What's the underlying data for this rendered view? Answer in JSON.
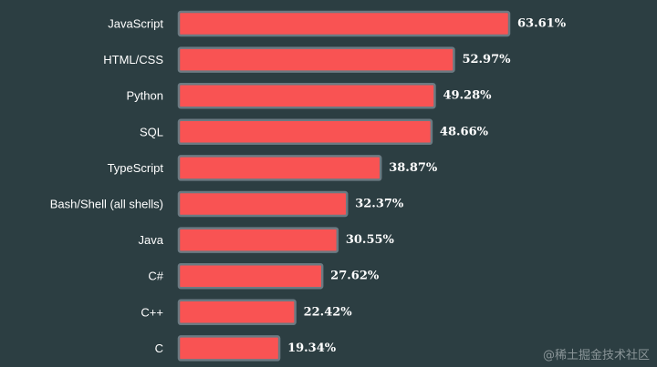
{
  "chart_data": {
    "type": "bar",
    "orientation": "horizontal",
    "categories": [
      "JavaScript",
      "HTML/CSS",
      "Python",
      "SQL",
      "TypeScript",
      "Bash/Shell (all shells)",
      "Java",
      "C#",
      "C++",
      "C"
    ],
    "values": [
      63.61,
      52.97,
      49.28,
      48.66,
      38.87,
      32.37,
      30.55,
      27.62,
      22.42,
      19.34
    ],
    "value_suffix": "%",
    "xlim": [
      0,
      63.61
    ],
    "title": "",
    "xlabel": "",
    "ylabel": ""
  },
  "colors": {
    "background": "#2c3e42",
    "bar_fill": "#f95353",
    "bar_stroke": "#6b7a82",
    "text": "#ffffff"
  },
  "watermark": "@稀土掘金技术社区"
}
